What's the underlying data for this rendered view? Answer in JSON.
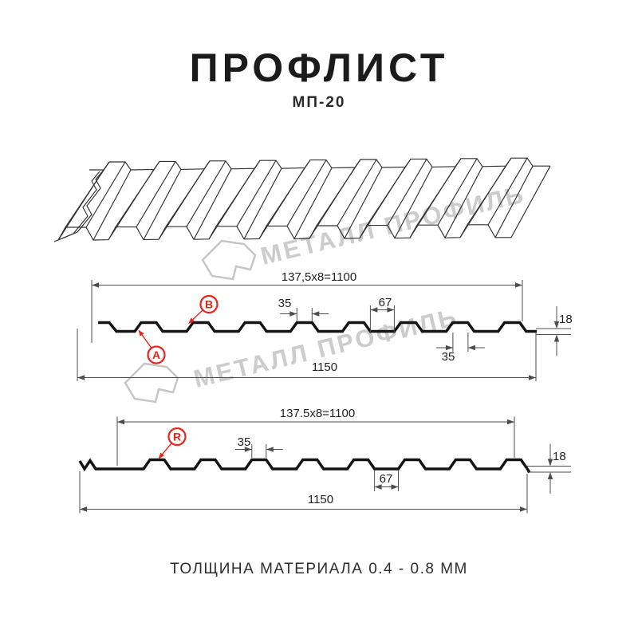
{
  "title": "ПРОФЛИСТ",
  "subtitle": "МП-20",
  "footer_note": "ТОЛЩИНА МАТЕРИАЛА 0.4 - 0.8 ММ",
  "watermark": {
    "text": "МЕТАЛЛ ПРОФИЛЬ",
    "color": "#c6c6c6"
  },
  "colors": {
    "ink": "#1b1b1b",
    "dim_line": "#4d4d4d",
    "profile_line": "#141414",
    "red": "#e8241c",
    "sheet_line": "#303030"
  },
  "diagram_top": {
    "module_width_label": "137,5x8=1100",
    "total_width_label": "1150",
    "crest_top_width_label": "35",
    "valley_width_label": "67",
    "height_label": "18",
    "bottom_crest_width_label": "35",
    "callout_b": "B",
    "callout_a": "A"
  },
  "diagram_bottom": {
    "module_width_label": "137.5x8=1100",
    "total_width_label": "1150",
    "crest_top_width_label": "35",
    "valley_width_label": "67",
    "height_label": "18",
    "callout_r": "R"
  }
}
